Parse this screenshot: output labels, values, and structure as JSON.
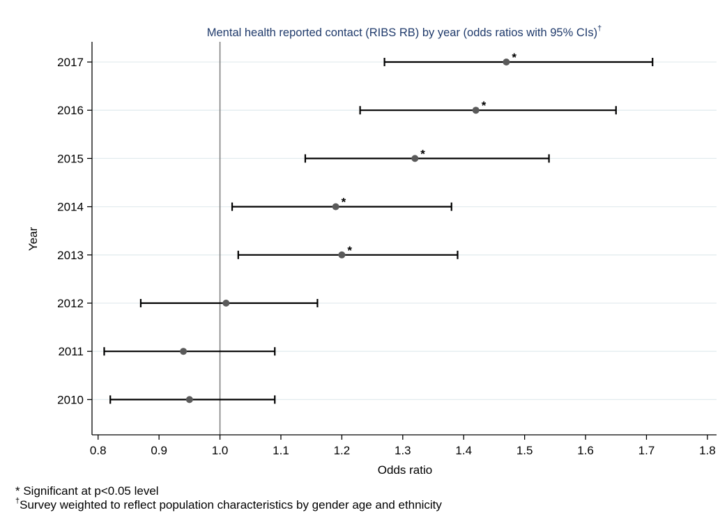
{
  "chart_data": {
    "type": "scatter",
    "title": "Mental health reported contact (RIBS RB) by year (odds ratios with 95% CIs)",
    "title_mark": "†",
    "xlabel": "Odds ratio",
    "ylabel": "Year",
    "xlim": [
      0.79,
      1.815
    ],
    "x_ticks": [
      "0.8",
      "0.9",
      "1.0",
      "1.1",
      "1.2",
      "1.3",
      "1.4",
      "1.5",
      "1.6",
      "1.7",
      "1.8"
    ],
    "reference_line_x": 1.0,
    "grid": "horizontal",
    "significance_marker": "*",
    "rows": [
      {
        "year": "2017",
        "or": 1.47,
        "lo": 1.27,
        "hi": 1.71,
        "significant": true
      },
      {
        "year": "2016",
        "or": 1.42,
        "lo": 1.23,
        "hi": 1.65,
        "significant": true
      },
      {
        "year": "2015",
        "or": 1.32,
        "lo": 1.14,
        "hi": 1.54,
        "significant": true
      },
      {
        "year": "2014",
        "or": 1.19,
        "lo": 1.02,
        "hi": 1.38,
        "significant": true
      },
      {
        "year": "2013",
        "or": 1.2,
        "lo": 1.03,
        "hi": 1.39,
        "significant": true
      },
      {
        "year": "2012",
        "or": 1.01,
        "lo": 0.87,
        "hi": 1.16,
        "significant": false
      },
      {
        "year": "2011",
        "or": 0.94,
        "lo": 0.81,
        "hi": 1.09,
        "significant": false
      },
      {
        "year": "2010",
        "or": 0.95,
        "lo": 0.82,
        "hi": 1.09,
        "significant": false
      }
    ],
    "colors": {
      "point": "#5a5a5a",
      "ci": "#000000",
      "grid": "#e3ecef",
      "reference_line": "#7a7a7a",
      "title": "#1f3a6b"
    }
  },
  "footnotes": {
    "significance": "* Significant at p<0.05 level",
    "weighting_mark": "†",
    "weighting": "Survey weighted to reflect population characteristics by gender age and ethnicity"
  }
}
